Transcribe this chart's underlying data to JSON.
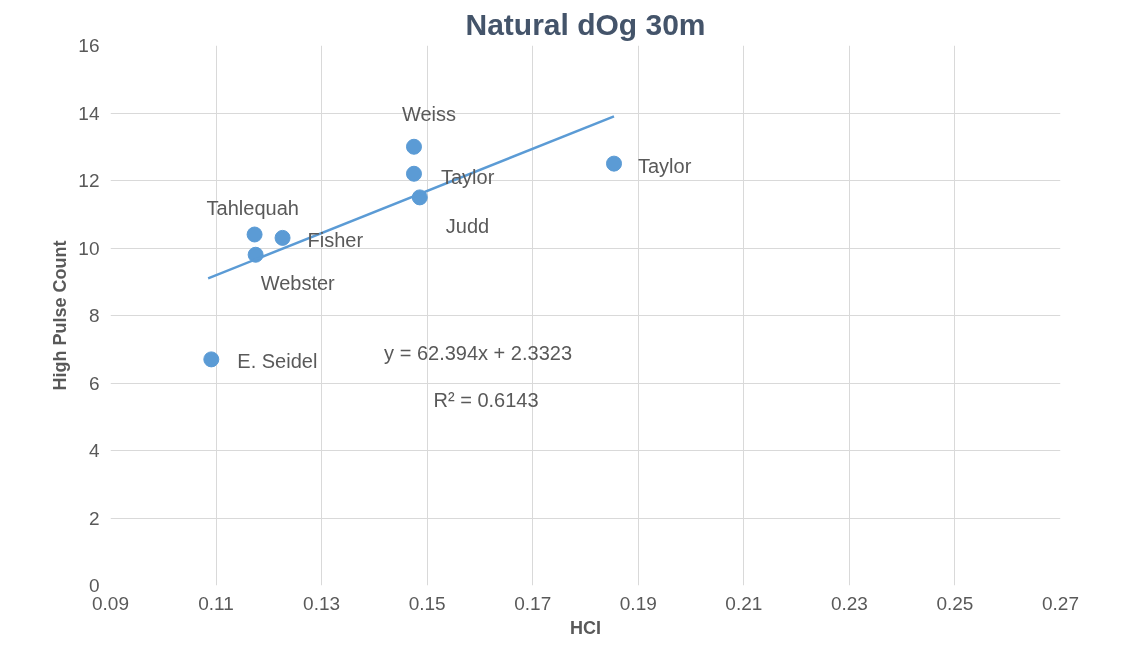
{
  "chart_data": {
    "type": "scatter",
    "title": "Natural dOg 30m",
    "xlabel": "HCI",
    "ylabel": "High Pulse Count",
    "xlim": [
      0.09,
      0.27
    ],
    "xticks": [
      0.09,
      0.11,
      0.13,
      0.15,
      0.17,
      0.19,
      0.21,
      0.23,
      0.25,
      0.27
    ],
    "ylim": [
      0,
      16
    ],
    "yticks": [
      0,
      2,
      4,
      6,
      8,
      10,
      12,
      14,
      16
    ],
    "grid": true,
    "series": [
      {
        "marker": "circle",
        "color": "#5b9bd5",
        "x": [
          0.1091,
          0.1173,
          0.1175,
          0.1226,
          0.1475,
          0.1475,
          0.1486,
          0.1854
        ],
        "values": [
          6.7,
          10.4,
          9.8,
          10.3,
          13.0,
          12.2,
          11.5,
          12.5
        ]
      },
      {
        "type": "line",
        "color": "#5b9bd5",
        "x": [
          0.1085,
          0.1854
        ],
        "values": [
          9.1,
          13.9
        ]
      }
    ],
    "annotations": [
      {
        "text": "Weiss",
        "x": 0.1475,
        "y": 13.0
      },
      {
        "text": "Taylor",
        "x": 0.1475,
        "y": 12.2
      },
      {
        "text": "Tahlequah",
        "x": 0.1173,
        "y": 10.4
      },
      {
        "text": "Fisher",
        "x": 0.1226,
        "y": 10.3
      },
      {
        "text": "Judd",
        "x": 0.1486,
        "y": 11.5
      },
      {
        "text": "Webster",
        "x": 0.1175,
        "y": 9.8
      },
      {
        "text": "E. Seidel",
        "x": 0.1091,
        "y": 6.7
      },
      {
        "text": "Taylor",
        "x": 0.1854,
        "y": 12.5
      },
      "y = 62.394x + 2.3323",
      "R² = 0.6143"
    ]
  }
}
